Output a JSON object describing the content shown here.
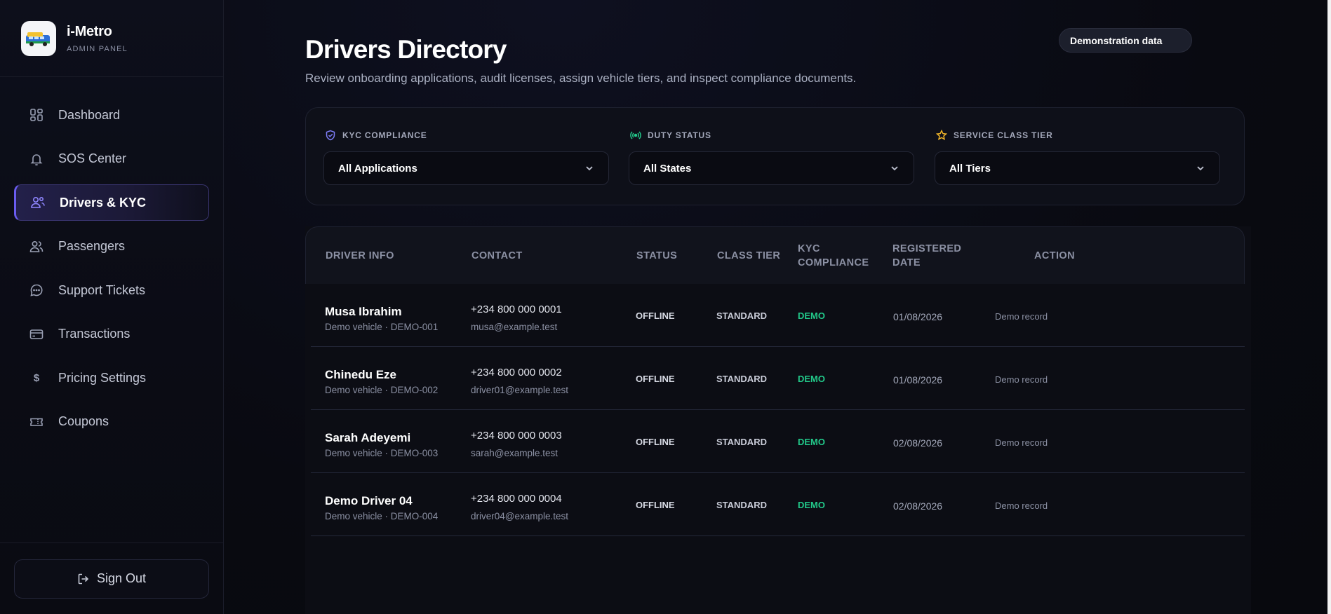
{
  "brand": {
    "name": "i-Metro",
    "subtitle": "ADMIN PANEL"
  },
  "sidebar": {
    "items": [
      {
        "label": "Dashboard",
        "icon": "grid-icon",
        "active": false
      },
      {
        "label": "SOS Center",
        "icon": "bell-icon",
        "active": false
      },
      {
        "label": "Drivers & KYC",
        "icon": "users-gear-icon",
        "active": true
      },
      {
        "label": "Passengers",
        "icon": "users-icon",
        "active": false
      },
      {
        "label": "Support Tickets",
        "icon": "chat-icon",
        "active": false
      },
      {
        "label": "Transactions",
        "icon": "card-icon",
        "active": false
      },
      {
        "label": "Pricing Settings",
        "icon": "dollar-icon",
        "active": false
      },
      {
        "label": "Coupons",
        "icon": "ticket-icon",
        "active": false
      }
    ],
    "sign_out": "Sign Out"
  },
  "header": {
    "title": "Drivers Directory",
    "subtitle": "Review onboarding applications, audit licenses, assign vehicle tiers, and inspect compliance documents.",
    "badge": "Demonstration data"
  },
  "filters": {
    "kyc": {
      "label": "KYC COMPLIANCE",
      "value": "All Applications",
      "icon_color": "#7c7cf5"
    },
    "duty": {
      "label": "DUTY STATUS",
      "value": "All States",
      "icon_color": "#22c98a"
    },
    "tier": {
      "label": "SERVICE CLASS TIER",
      "value": "All Tiers",
      "icon_color": "#f0b429"
    }
  },
  "table": {
    "headers": {
      "driver": "DRIVER INFO",
      "contact": "CONTACT",
      "status": "STATUS",
      "tier": "CLASS TIER",
      "kyc_line1": "KYC",
      "kyc_line2": "COMPLIANCE",
      "date_line1": "REGISTERED",
      "date_line2": "DATE",
      "action": "ACTION"
    },
    "rows": [
      {
        "name": "Musa Ibrahim",
        "vehicle": "Demo vehicle · DEMO-001",
        "phone": "+234 800 000 0001",
        "email": "musa@example.test",
        "status": "OFFLINE",
        "tier": "STANDARD",
        "kyc": "DEMO",
        "date": "01/08/2026",
        "action": "Demo record"
      },
      {
        "name": "Chinedu Eze",
        "vehicle": "Demo vehicle · DEMO-002",
        "phone": "+234 800 000 0002",
        "email": "driver01@example.test",
        "status": "OFFLINE",
        "tier": "STANDARD",
        "kyc": "DEMO",
        "date": "01/08/2026",
        "action": "Demo record"
      },
      {
        "name": "Sarah Adeyemi",
        "vehicle": "Demo vehicle · DEMO-003",
        "phone": "+234 800 000 0003",
        "email": "sarah@example.test",
        "status": "OFFLINE",
        "tier": "STANDARD",
        "kyc": "DEMO",
        "date": "02/08/2026",
        "action": "Demo record"
      },
      {
        "name": "Demo Driver 04",
        "vehicle": "Demo vehicle · DEMO-004",
        "phone": "+234 800 000 0004",
        "email": "driver04@example.test",
        "status": "OFFLINE",
        "tier": "STANDARD",
        "kyc": "DEMO",
        "date": "02/08/2026",
        "action": "Demo record"
      }
    ]
  },
  "colors": {
    "accent": "#6a5cf0",
    "success": "#22c98a",
    "warning": "#f0b429"
  }
}
